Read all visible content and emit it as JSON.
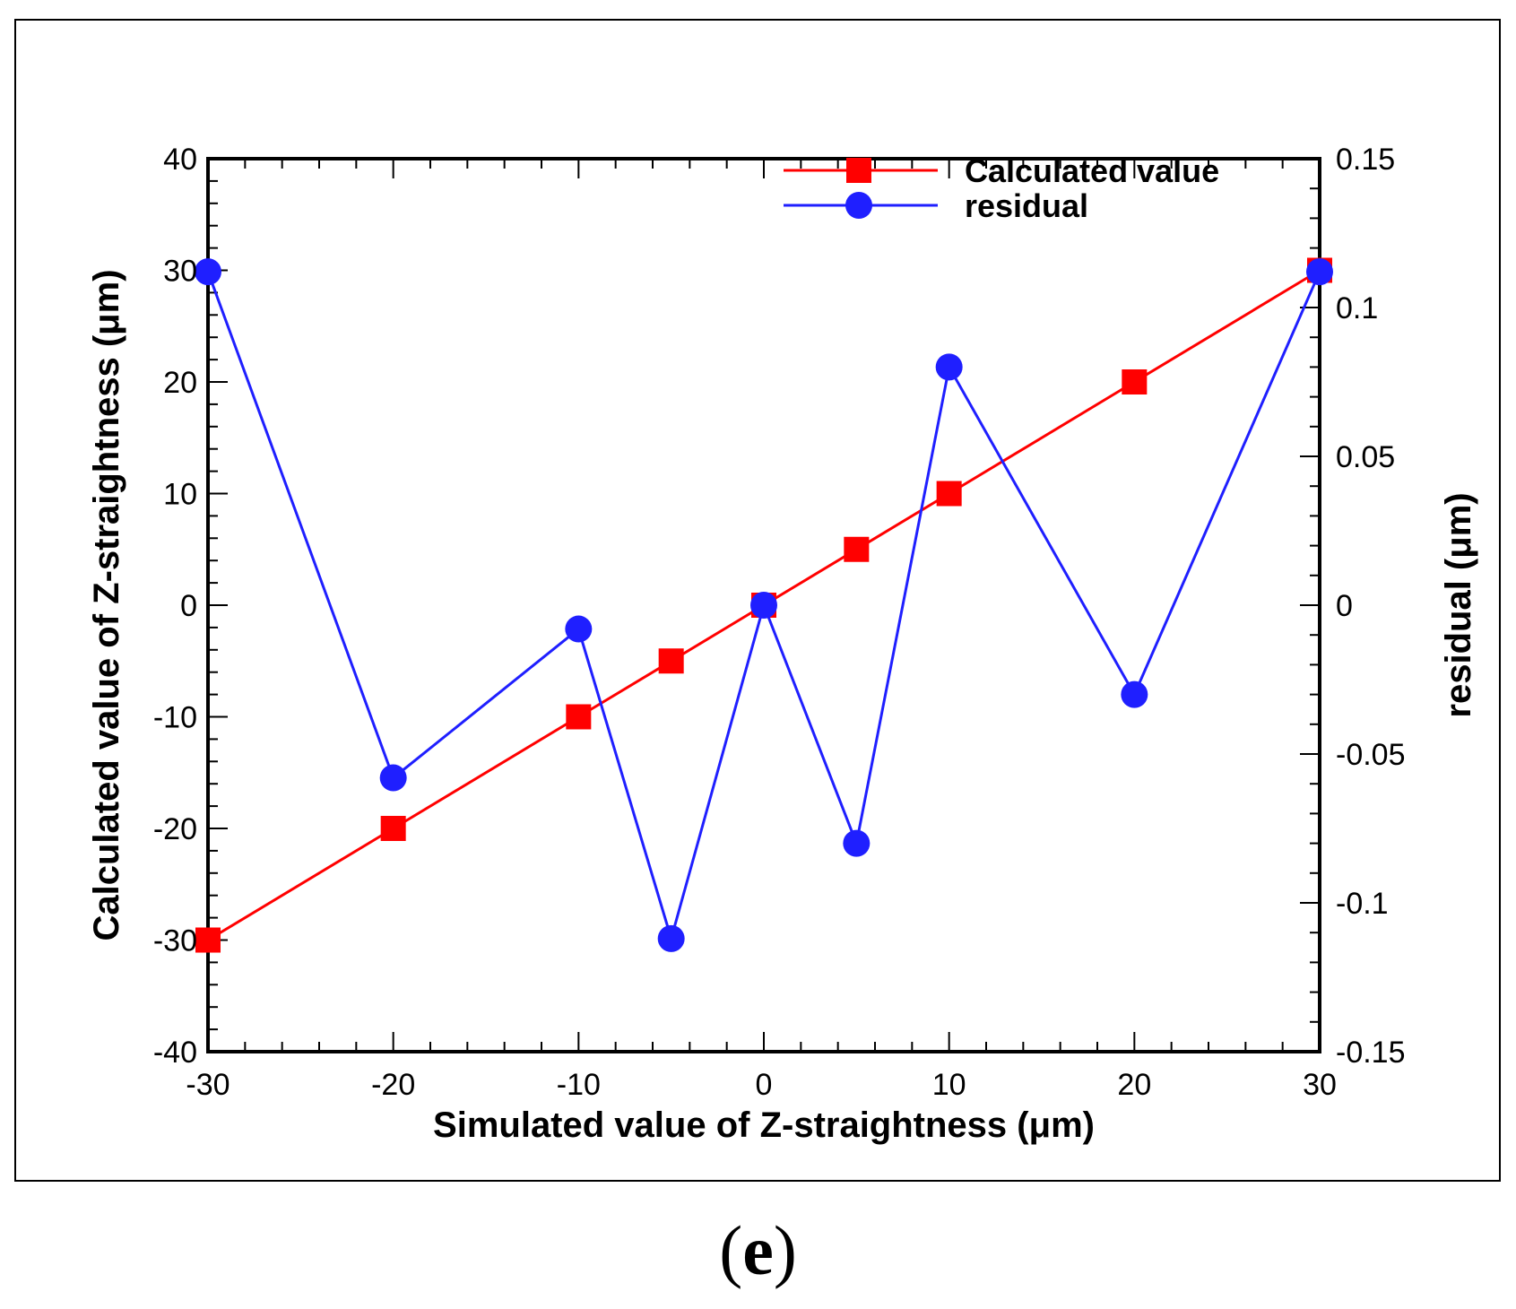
{
  "chart_data": {
    "type": "line",
    "x": [
      -30,
      -20,
      -10,
      -5,
      0,
      5,
      10,
      20,
      30
    ],
    "xlabel": "Simulated value of Z-straightness (μm)",
    "ylabel_left": "Calculated value of Z-straightness (μm)",
    "ylabel_right": "residual (μm)",
    "xlim": [
      -30,
      30
    ],
    "ylim_left": [
      -40,
      40
    ],
    "ylim_right": [
      -0.15,
      0.15
    ],
    "x_ticks": [
      -30,
      -20,
      -10,
      0,
      10,
      20,
      30
    ],
    "x_tick_labels": [
      "-30",
      "-20",
      "-10",
      "0",
      "10",
      "20",
      "30"
    ],
    "y_left_ticks": [
      -40,
      -30,
      -20,
      -10,
      0,
      10,
      20,
      30,
      40
    ],
    "y_left_tick_labels": [
      "-40",
      "-30",
      "-20",
      "-10",
      "0",
      "10",
      "20",
      "30",
      "40"
    ],
    "y_right_ticks": [
      -0.15,
      -0.1,
      -0.05,
      0,
      0.05,
      0.1,
      0.15
    ],
    "y_right_tick_labels": [
      "-0.15",
      "-0.1",
      "-0.05",
      "0",
      "0.05",
      "0.1",
      "0.15"
    ],
    "grid": false,
    "legend_position": "top-right",
    "series": [
      {
        "name": "Calculated value",
        "axis": "left",
        "color": "#ff0000",
        "marker": "square",
        "values": [
          -30,
          -20,
          -10,
          -5,
          0,
          5,
          10,
          20,
          30
        ]
      },
      {
        "name": "residual",
        "axis": "right",
        "color": "#1f1fff",
        "marker": "circle",
        "values": [
          0.112,
          -0.058,
          -0.008,
          -0.112,
          0.0,
          -0.08,
          0.08,
          -0.03,
          0.112
        ]
      }
    ]
  },
  "panel_label": {
    "open": "(",
    "letter": "e",
    "close": ")"
  }
}
